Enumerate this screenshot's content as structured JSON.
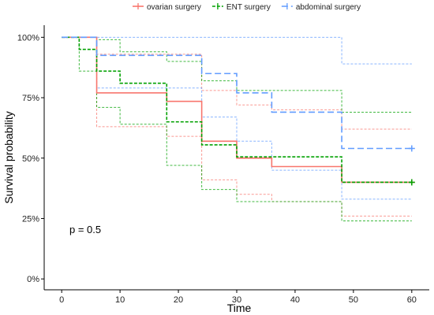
{
  "chart_data": {
    "type": "line",
    "subtype": "kaplan-meier survival curves with confidence bands",
    "xlabel": "Time",
    "ylabel": "Survival probability",
    "xlim": [
      0,
      60
    ],
    "ylim": [
      0,
      1
    ],
    "x_ticks": [
      0,
      10,
      20,
      30,
      40,
      50,
      60
    ],
    "y_ticks": [
      0,
      0.25,
      0.5,
      0.75,
      1.0
    ],
    "y_tick_labels": [
      "0%",
      "25%",
      "50%",
      "75%",
      "100%"
    ],
    "grid": false,
    "legend_position": "top",
    "annotation": "p = 0.5",
    "series": [
      {
        "name": "ovarian surgery",
        "color": "#F8766D",
        "steps": [
          [
            0,
            1.0
          ],
          [
            6,
            0.77
          ],
          [
            18,
            0.735
          ],
          [
            24,
            0.57
          ],
          [
            30,
            0.5
          ],
          [
            36,
            0.465
          ],
          [
            48,
            0.4
          ],
          [
            60,
            0.4
          ]
        ],
        "ci_upper": [
          [
            0,
            1.0
          ],
          [
            3,
            1.0
          ],
          [
            6,
            0.93
          ],
          [
            18,
            0.93
          ],
          [
            24,
            0.78
          ],
          [
            30,
            0.72
          ],
          [
            36,
            0.7
          ],
          [
            48,
            0.62
          ],
          [
            60,
            0.62
          ]
        ],
        "ci_lower": [
          [
            0,
            1.0
          ],
          [
            6,
            0.63
          ],
          [
            18,
            0.59
          ],
          [
            24,
            0.41
          ],
          [
            30,
            0.35
          ],
          [
            36,
            0.32
          ],
          [
            48,
            0.26
          ],
          [
            60,
            0.26
          ]
        ]
      },
      {
        "name": "ENT surgery",
        "color": "#00A100",
        "steps": [
          [
            0,
            1.0
          ],
          [
            3,
            0.95
          ],
          [
            6,
            0.86
          ],
          [
            10,
            0.81
          ],
          [
            18,
            0.65
          ],
          [
            24,
            0.555
          ],
          [
            30,
            0.505
          ],
          [
            48,
            0.4
          ],
          [
            60,
            0.4
          ]
        ],
        "ci_upper": [
          [
            0,
            1.0
          ],
          [
            3,
            1.0
          ],
          [
            6,
            0.99
          ],
          [
            10,
            0.94
          ],
          [
            18,
            0.9
          ],
          [
            24,
            0.82
          ],
          [
            30,
            0.78
          ],
          [
            48,
            0.69
          ],
          [
            60,
            0.69
          ]
        ],
        "ci_lower": [
          [
            0,
            1.0
          ],
          [
            3,
            0.86
          ],
          [
            6,
            0.71
          ],
          [
            10,
            0.64
          ],
          [
            18,
            0.47
          ],
          [
            24,
            0.37
          ],
          [
            30,
            0.32
          ],
          [
            48,
            0.24
          ],
          [
            60,
            0.24
          ]
        ]
      },
      {
        "name": "abdominal surgery",
        "color": "#619CFF",
        "steps": [
          [
            0,
            1.0
          ],
          [
            6,
            0.925
          ],
          [
            24,
            0.85
          ],
          [
            30,
            0.77
          ],
          [
            36,
            0.69
          ],
          [
            48,
            0.54
          ],
          [
            60,
            0.54
          ]
        ],
        "ci_upper": [
          [
            0,
            1.0
          ],
          [
            36,
            1.0
          ],
          [
            48,
            0.89
          ],
          [
            60,
            0.89
          ]
        ],
        "ci_lower": [
          [
            0,
            1.0
          ],
          [
            6,
            0.79
          ],
          [
            24,
            0.67
          ],
          [
            30,
            0.57
          ],
          [
            36,
            0.45
          ],
          [
            48,
            0.33
          ],
          [
            60,
            0.33
          ]
        ]
      }
    ]
  }
}
